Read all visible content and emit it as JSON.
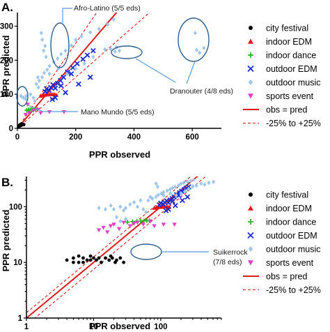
{
  "colors": {
    "city_festival": "#000000",
    "indoor_edm": "#e8161b",
    "indoor_dance": "#2fb52f",
    "outdoor_edm": "#1c2ccf",
    "outdoor_music": "#9ec5ec",
    "sports_event": "#e040c8",
    "obs_pred": "#dd1a1a",
    "band": "#dd1a1a"
  },
  "legend": [
    {
      "key": "city_festival",
      "label": "city festival",
      "marker": "circle-icon"
    },
    {
      "key": "indoor_edm",
      "label": "indoor EDM",
      "marker": "triangle-up-icon"
    },
    {
      "key": "indoor_dance",
      "label": "indoor dance",
      "marker": "plus-icon"
    },
    {
      "key": "outdoor_edm",
      "label": "outdoor EDM",
      "marker": "cross-icon"
    },
    {
      "key": "outdoor_music",
      "label": "outdoor music",
      "marker": "diamond-icon"
    },
    {
      "key": "sports_event",
      "label": "sports event",
      "marker": "triangle-down-icon"
    },
    {
      "key": "obs_pred",
      "label": "obs = pred",
      "marker": "solid-line-icon"
    },
    {
      "key": "band",
      "label": "-25% to +25%",
      "marker": "dashed-line-icon"
    }
  ],
  "chart_data": [
    {
      "type": "scatter",
      "panel_label": "A.",
      "xlabel": "PPR observed",
      "ylabel": "PPR predicted",
      "xlim": [
        0,
        700
      ],
      "ylim": [
        0,
        340
      ],
      "x_scale": "linear",
      "y_scale": "linear",
      "xticks": [
        0,
        200,
        400,
        600
      ],
      "yticks": [
        0,
        100,
        200,
        300
      ],
      "reference_lines": {
        "obs_pred": 1.0,
        "lower": 0.75,
        "upper": 1.25
      },
      "annotations": [
        {
          "text": "Afro-Latino (5/5 eds)"
        },
        {
          "text": "Dranouter (4/8 eds)"
        },
        {
          "text": "Mano Mundo (5/5 eds)"
        }
      ],
      "series": [
        {
          "name": "city festival",
          "key": "city_festival",
          "points": [
            [
              5,
              6
            ],
            [
              7,
              8
            ],
            [
              8,
              10
            ],
            [
              10,
              11
            ],
            [
              11,
              12
            ],
            [
              13,
              11
            ],
            [
              15,
              13
            ],
            [
              17,
              12
            ],
            [
              20,
              12
            ],
            [
              22,
              11
            ],
            [
              14,
              9
            ],
            [
              9,
              7
            ]
          ]
        },
        {
          "name": "indoor EDM",
          "key": "indoor_edm",
          "points": [
            [
              80,
              95
            ],
            [
              86,
              97
            ],
            [
              92,
              98
            ],
            [
              98,
              99
            ],
            [
              104,
              99
            ],
            [
              110,
              100
            ],
            [
              116,
              100
            ],
            [
              122,
              100
            ],
            [
              128,
              100
            ],
            [
              134,
              98
            ]
          ]
        },
        {
          "name": "indoor dance",
          "key": "indoor_dance",
          "points": [
            [
              32,
              53
            ],
            [
              38,
              54
            ],
            [
              44,
              55
            ],
            [
              50,
              55
            ],
            [
              56,
              56
            ],
            [
              62,
              56
            ],
            [
              68,
              56
            ]
          ]
        },
        {
          "name": "outdoor EDM",
          "key": "outdoor_edm",
          "points": [
            [
              95,
              108
            ],
            [
              100,
              116
            ],
            [
              108,
              112
            ],
            [
              115,
              120
            ],
            [
              122,
              128
            ],
            [
              130,
              118
            ],
            [
              138,
              132
            ],
            [
              148,
              140
            ],
            [
              158,
              150
            ],
            [
              172,
              165
            ],
            [
              190,
              178
            ],
            [
              205,
              190
            ],
            [
              225,
              203
            ],
            [
              240,
              215
            ],
            [
              260,
              228
            ],
            [
              120,
              85
            ],
            [
              130,
              90
            ],
            [
              165,
              105
            ],
            [
              210,
              130
            ],
            [
              250,
              150
            ],
            [
              150,
              125
            ],
            [
              185,
              160
            ]
          ]
        },
        {
          "name": "outdoor music",
          "key": "outdoor_music",
          "points": [
            [
              30,
              95
            ],
            [
              45,
              100
            ],
            [
              55,
              90
            ],
            [
              65,
              130
            ],
            [
              70,
              150
            ],
            [
              72,
              120
            ],
            [
              75,
              140
            ],
            [
              85,
              150
            ],
            [
              92,
              163
            ],
            [
              102,
              172
            ],
            [
              110,
              183
            ],
            [
              125,
              195
            ],
            [
              138,
              205
            ],
            [
              150,
              218
            ],
            [
              165,
              228
            ],
            [
              185,
              243
            ],
            [
              200,
              260
            ],
            [
              220,
              270
            ],
            [
              250,
              282
            ],
            [
              280,
              292
            ],
            [
              310,
              305
            ],
            [
              330,
              320
            ],
            [
              340,
              238
            ],
            [
              320,
              233
            ],
            [
              350,
              228
            ],
            [
              300,
              232
            ],
            [
              335,
              226
            ],
            [
              82,
              280
            ],
            [
              85,
              260
            ],
            [
              90,
              228
            ],
            [
              95,
              242
            ],
            [
              98,
              210
            ],
            [
              610,
              280
            ],
            [
              615,
              230
            ],
            [
              625,
              222
            ],
            [
              640,
              236
            ],
            [
              12,
              95
            ],
            [
              20,
              90
            ],
            [
              28,
              86
            ],
            [
              170,
              160
            ],
            [
              200,
              175
            ],
            [
              230,
              190
            ],
            [
              260,
              210
            ],
            [
              140,
              175
            ],
            [
              110,
              160
            ],
            [
              60,
              80
            ]
          ]
        },
        {
          "name": "sports event",
          "key": "sports_event",
          "points": [
            [
              28,
              40
            ],
            [
              40,
              45
            ],
            [
              55,
              52
            ],
            [
              80,
              45
            ],
            [
              110,
              48
            ],
            [
              160,
              48
            ],
            [
              70,
              55
            ],
            [
              35,
              70
            ]
          ]
        }
      ]
    },
    {
      "type": "scatter",
      "panel_label": "B.",
      "xlabel": "PPR observed",
      "ylabel": "PPR predicted",
      "xlim": [
        1,
        800
      ],
      "ylim": [
        1,
        350
      ],
      "x_scale": "log",
      "y_scale": "log",
      "xticks": [
        1,
        10,
        100
      ],
      "yticks": [
        1,
        10,
        100
      ],
      "reference_lines": {
        "obs_pred": 1.0,
        "lower": 0.75,
        "upper": 1.25
      },
      "annotations": [
        {
          "text": "Suikerrock"
        },
        {
          "text": "(7/8 eds)"
        }
      ],
      "series": [
        {
          "name": "city festival",
          "key": "city_festival",
          "points": [
            [
              4,
              11
            ],
            [
              5,
              12
            ],
            [
              6,
              10
            ],
            [
              7,
              12
            ],
            [
              8,
              11
            ],
            [
              9,
              13
            ],
            [
              10,
              12
            ],
            [
              11,
              11
            ],
            [
              12,
              12
            ],
            [
              13,
              10
            ],
            [
              15,
              12
            ],
            [
              17,
              11
            ],
            [
              19,
              12
            ],
            [
              22,
              11
            ],
            [
              25,
              12
            ],
            [
              28,
              10
            ],
            [
              6,
              13
            ],
            [
              7,
              10
            ],
            [
              9,
              11
            ],
            [
              18,
              13
            ],
            [
              21,
              10
            ],
            [
              5,
              10
            ]
          ]
        },
        {
          "name": "indoor EDM",
          "key": "indoor_edm",
          "points": [
            [
              80,
              95
            ],
            [
              86,
              97
            ],
            [
              92,
              98
            ],
            [
              98,
              99
            ],
            [
              104,
              99
            ],
            [
              110,
              100
            ],
            [
              116,
              100
            ],
            [
              122,
              100
            ],
            [
              128,
              100
            ],
            [
              134,
              98
            ]
          ]
        },
        {
          "name": "indoor dance",
          "key": "indoor_dance",
          "points": [
            [
              32,
              53
            ],
            [
              38,
              54
            ],
            [
              44,
              55
            ],
            [
              50,
              55
            ],
            [
              56,
              56
            ],
            [
              62,
              56
            ],
            [
              68,
              56
            ]
          ]
        },
        {
          "name": "outdoor EDM",
          "key": "outdoor_edm",
          "points": [
            [
              95,
              108
            ],
            [
              100,
              116
            ],
            [
              108,
              112
            ],
            [
              115,
              120
            ],
            [
              122,
              128
            ],
            [
              130,
              118
            ],
            [
              138,
              132
            ],
            [
              148,
              140
            ],
            [
              158,
              150
            ],
            [
              172,
              165
            ],
            [
              190,
              178
            ],
            [
              205,
              190
            ],
            [
              225,
              203
            ],
            [
              240,
              215
            ],
            [
              260,
              228
            ],
            [
              120,
              85
            ],
            [
              130,
              90
            ],
            [
              165,
              105
            ],
            [
              210,
              130
            ],
            [
              250,
              150
            ],
            [
              150,
              125
            ],
            [
              185,
              160
            ]
          ]
        },
        {
          "name": "outdoor music",
          "key": "outdoor_music",
          "points": [
            [
              12,
              95
            ],
            [
              15,
              90
            ],
            [
              18,
              105
            ],
            [
              20,
              90
            ],
            [
              25,
              100
            ],
            [
              28,
              86
            ],
            [
              30,
              95
            ],
            [
              35,
              110
            ],
            [
              40,
              120
            ],
            [
              45,
              100
            ],
            [
              50,
              130
            ],
            [
              55,
              90
            ],
            [
              60,
              80
            ],
            [
              65,
              130
            ],
            [
              70,
              150
            ],
            [
              75,
              140
            ],
            [
              85,
              150
            ],
            [
              92,
              163
            ],
            [
              102,
              172
            ],
            [
              110,
              183
            ],
            [
              125,
              195
            ],
            [
              138,
              205
            ],
            [
              150,
              218
            ],
            [
              165,
              228
            ],
            [
              185,
              243
            ],
            [
              200,
              260
            ],
            [
              220,
              270
            ],
            [
              250,
              282
            ],
            [
              280,
              292
            ],
            [
              310,
              305
            ],
            [
              340,
              238
            ],
            [
              400,
              260
            ],
            [
              450,
              250
            ],
            [
              520,
              270
            ],
            [
              610,
              280
            ],
            [
              140,
              175
            ],
            [
              110,
              160
            ],
            [
              170,
              160
            ],
            [
              230,
              190
            ],
            [
              260,
              210
            ],
            [
              300,
              232
            ],
            [
              200,
              175
            ],
            [
              90,
              228
            ],
            [
              85,
              260
            ],
            [
              25,
              55
            ],
            [
              30,
              60
            ],
            [
              22,
              65
            ]
          ]
        },
        {
          "name": "sports event",
          "key": "sports_event",
          "points": [
            [
              12,
              38
            ],
            [
              14,
              42
            ],
            [
              16,
              35
            ],
            [
              18,
              45
            ],
            [
              20,
              48
            ],
            [
              24,
              40
            ],
            [
              28,
              52
            ],
            [
              35,
              45
            ],
            [
              40,
              50
            ],
            [
              45,
              52
            ],
            [
              55,
              48
            ],
            [
              70,
              55
            ],
            [
              80,
              45
            ],
            [
              110,
              48
            ],
            [
              160,
              48
            ]
          ]
        }
      ]
    }
  ]
}
